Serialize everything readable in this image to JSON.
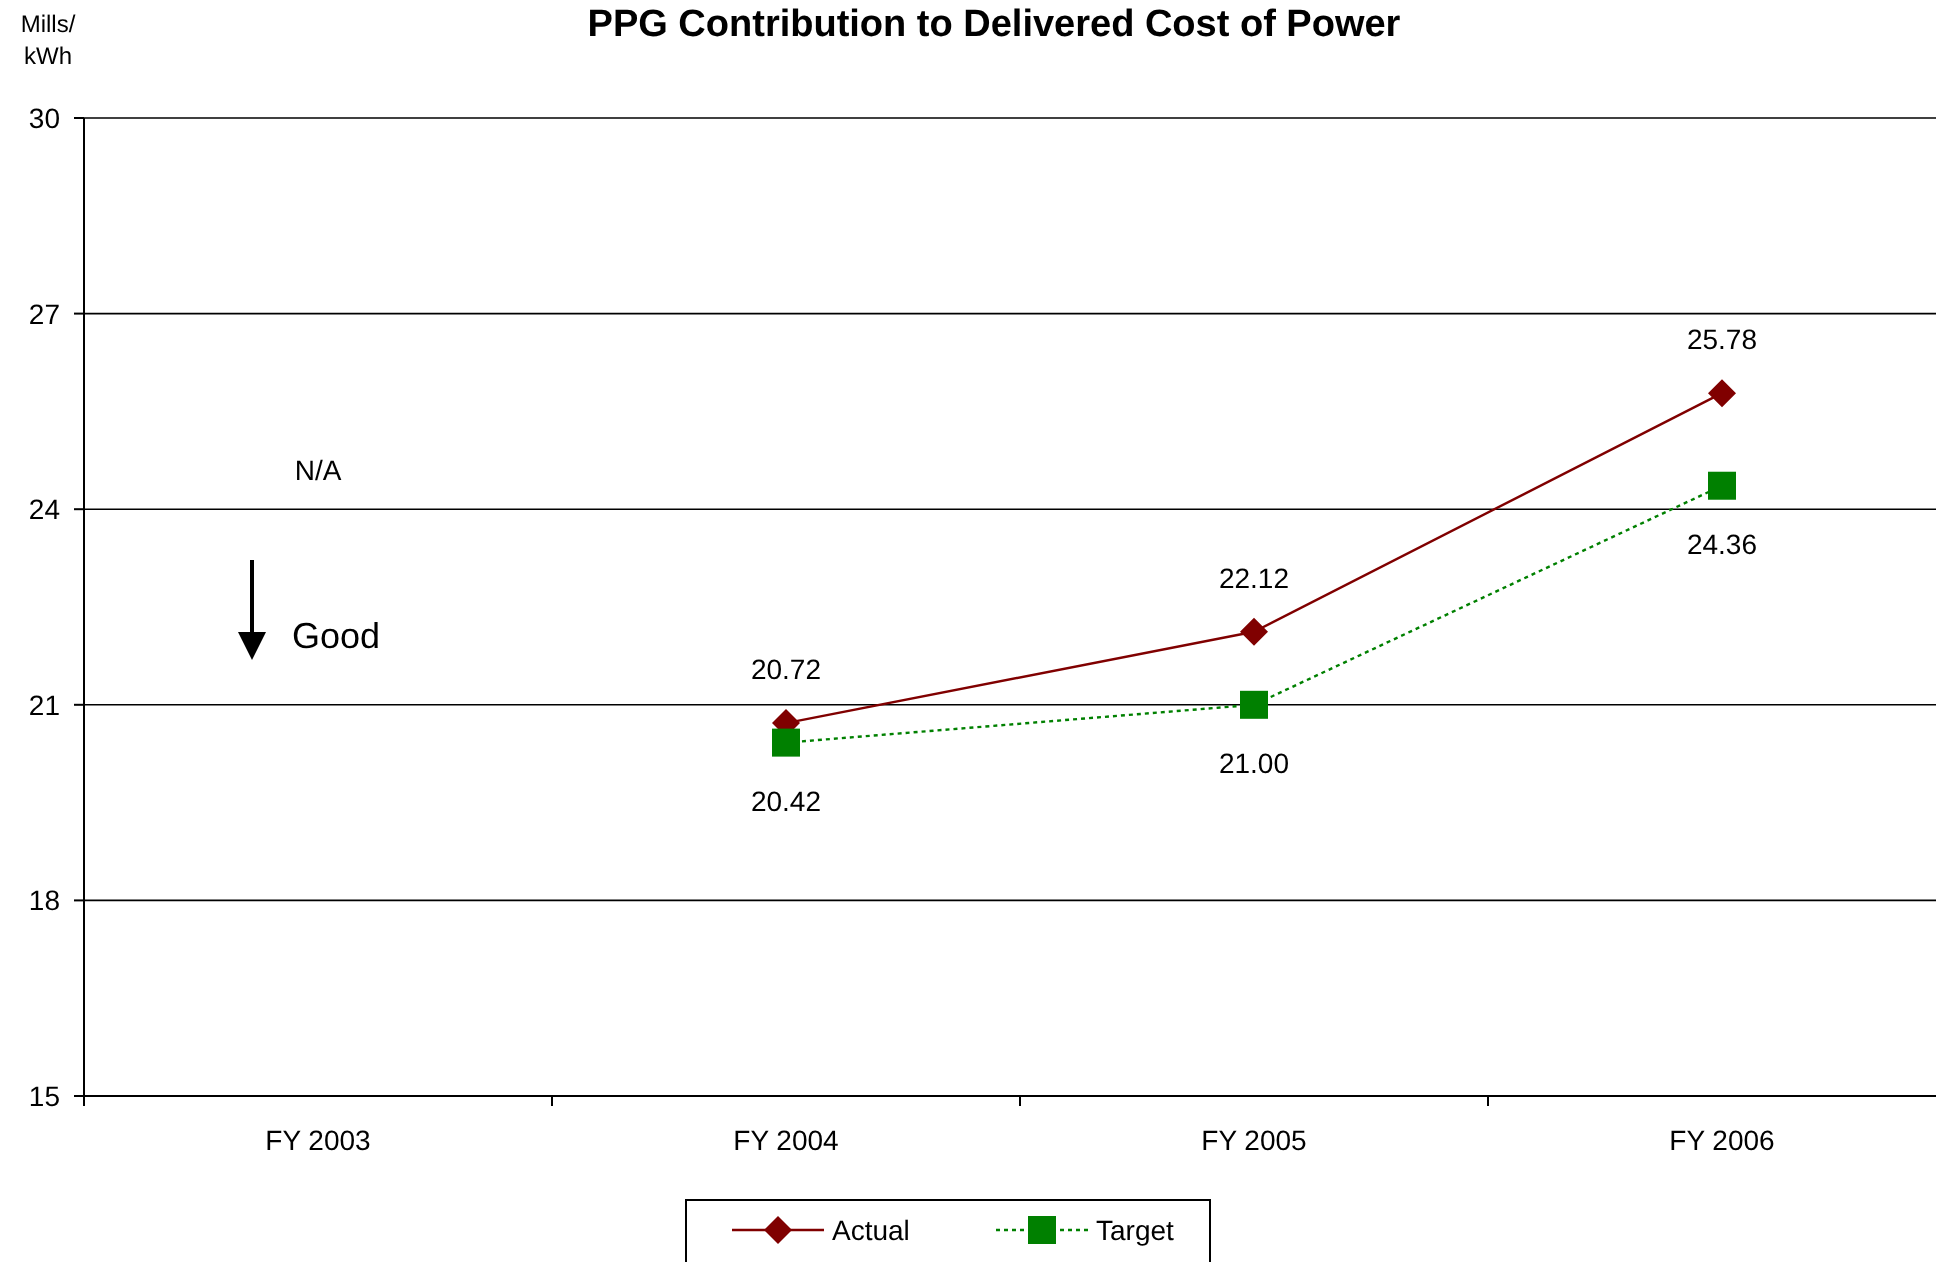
{
  "chart_data": {
    "type": "line",
    "title": "PPG Contribution to Delivered Cost of Power",
    "ylabel": "Mills/\nkWh",
    "categories": [
      "FY 2003",
      "FY 2004",
      "FY 2005",
      "FY 2006"
    ],
    "series": [
      {
        "name": "Actual",
        "color": "#800000",
        "values": [
          null,
          20.72,
          22.12,
          25.78
        ],
        "value_labels": [
          null,
          "20.72",
          "22.12",
          "25.78"
        ],
        "marker": "diamond",
        "line_style": "solid"
      },
      {
        "name": "Target",
        "color": "#008000",
        "values": [
          null,
          20.42,
          21.0,
          24.36
        ],
        "value_labels": [
          null,
          "20.42",
          "21.00",
          "24.36"
        ],
        "marker": "square",
        "line_style": "dotted"
      }
    ],
    "ylim": [
      15,
      30
    ],
    "yticks": [
      15,
      18,
      21,
      24,
      27,
      30
    ],
    "grid": "y",
    "legend": "bottom",
    "annotations": [
      "N/A",
      "Good"
    ]
  }
}
